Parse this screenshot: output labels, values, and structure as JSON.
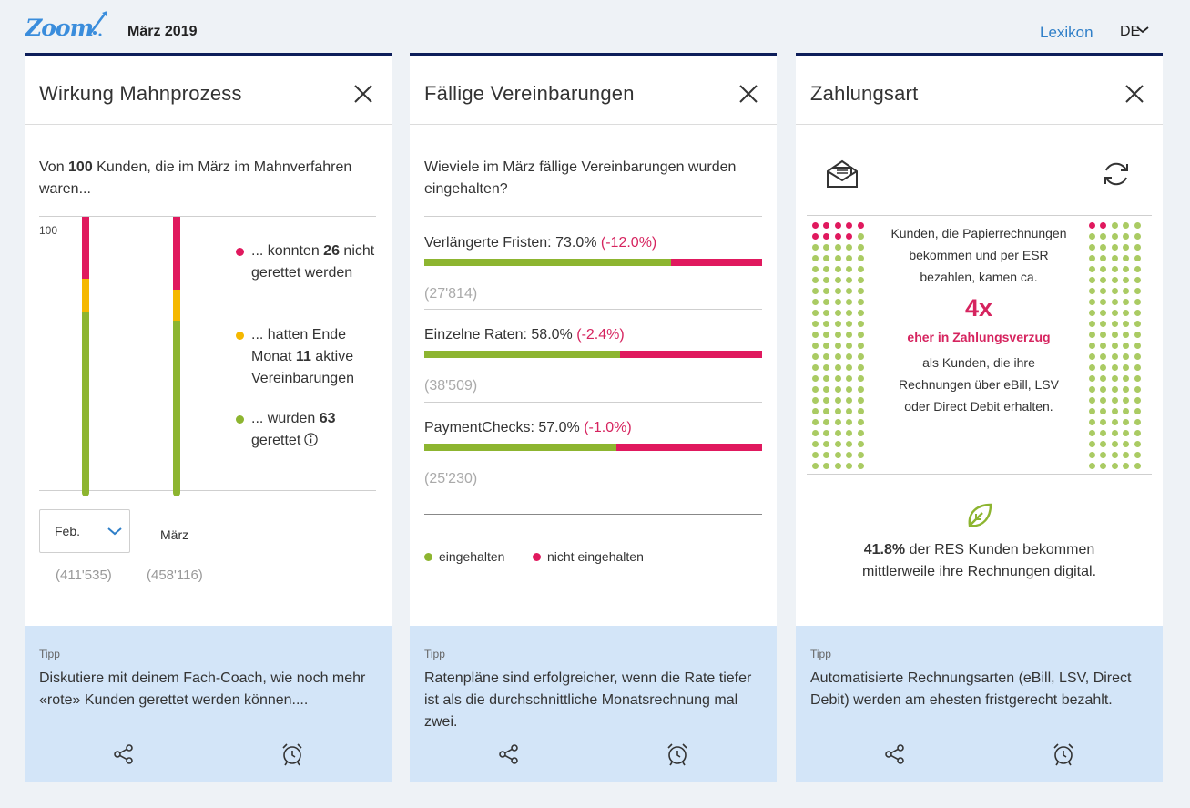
{
  "header": {
    "logo_text": "Zoom",
    "month": "März 2019",
    "lexikon": "Lexikon",
    "language": "DE"
  },
  "colors": {
    "red": "#e0195e",
    "yellow": "#f5b800",
    "green": "#8db530",
    "navy": "#0d1e5a",
    "tip_bg": "#d3e5f8",
    "link": "#2f7fc8"
  },
  "card1": {
    "title": "Wirkung Mahnprozess",
    "intro_pre": "Von ",
    "intro_num": "100",
    "intro_post": " Kunden, die im März im Mahnverfahren waren...",
    "y_max_label": "100",
    "legend": [
      {
        "pre": "... konnten ",
        "num": "26",
        "post": " nicht gerettet werden",
        "color": "#e0195e"
      },
      {
        "pre": "... hatten Ende Monat ",
        "num": "11",
        "post": " aktive Vereinbarungen",
        "color": "#f5b800"
      },
      {
        "pre": "... wurden ",
        "num": "63",
        "post": " gerettet",
        "color": "#8db530"
      }
    ],
    "columns": [
      {
        "label": "Feb.",
        "count": "(411'535)",
        "red": 22,
        "yellow": 12,
        "green": 66
      },
      {
        "label": "März",
        "count": "(458'116)",
        "red": 26,
        "yellow": 11,
        "green": 63
      }
    ],
    "tip_label": "Tipp",
    "tip_text": "Diskutiere mit deinem Fach-Coach, wie noch mehr «rote» Kunden gerettet werden können...."
  },
  "card2": {
    "title": "Fällige Vereinbarungen",
    "question": "Wieviele im März fällige Vereinbarungen wurden eingehalten?",
    "rows": [
      {
        "label": "Verlängerte Fristen: 73.0%",
        "change": "(-12.0%)",
        "percent": 73.0,
        "count": "(27'814)"
      },
      {
        "label": "Einzelne Raten: 58.0%",
        "change": "(-2.4%)",
        "percent": 58.0,
        "count": "(38'509)"
      },
      {
        "label": "PaymentChecks: 57.0%",
        "change": "(-1.0%)",
        "percent": 57.0,
        "count": "(25'230)"
      }
    ],
    "legend_kept": "eingehalten",
    "legend_not_kept": "nicht eingehalten",
    "tip_label": "Tipp",
    "tip_text": "Ratenpläne sind erfolgreicher, wenn die Rate tiefer ist als die durchschnittliche Monatsrechnung mal zwei."
  },
  "card3": {
    "title": "Zahlungsart",
    "fact_top": "Kunden, die Papierrechnungen bekommen und per ESR bezahlen, kamen ca.",
    "fact_big": "4x",
    "fact_accent": "eher in Zahlungsverzug",
    "fact_bottom": "als Kunden, die ihre Rechnungen über eBill, LSV oder Direct Debit erhalten.",
    "left_grid_red": 9,
    "right_grid_red": 2,
    "digital_num": "41.8%",
    "digital_text": " der RES Kunden bekommen mittlerweile ihre Rechnungen digital.",
    "tip_label": "Tipp",
    "tip_text": "Automatisierte Rechnungsarten (eBill, LSV, Direct Debit) werden am ehesten fristgerecht bezahlt."
  }
}
